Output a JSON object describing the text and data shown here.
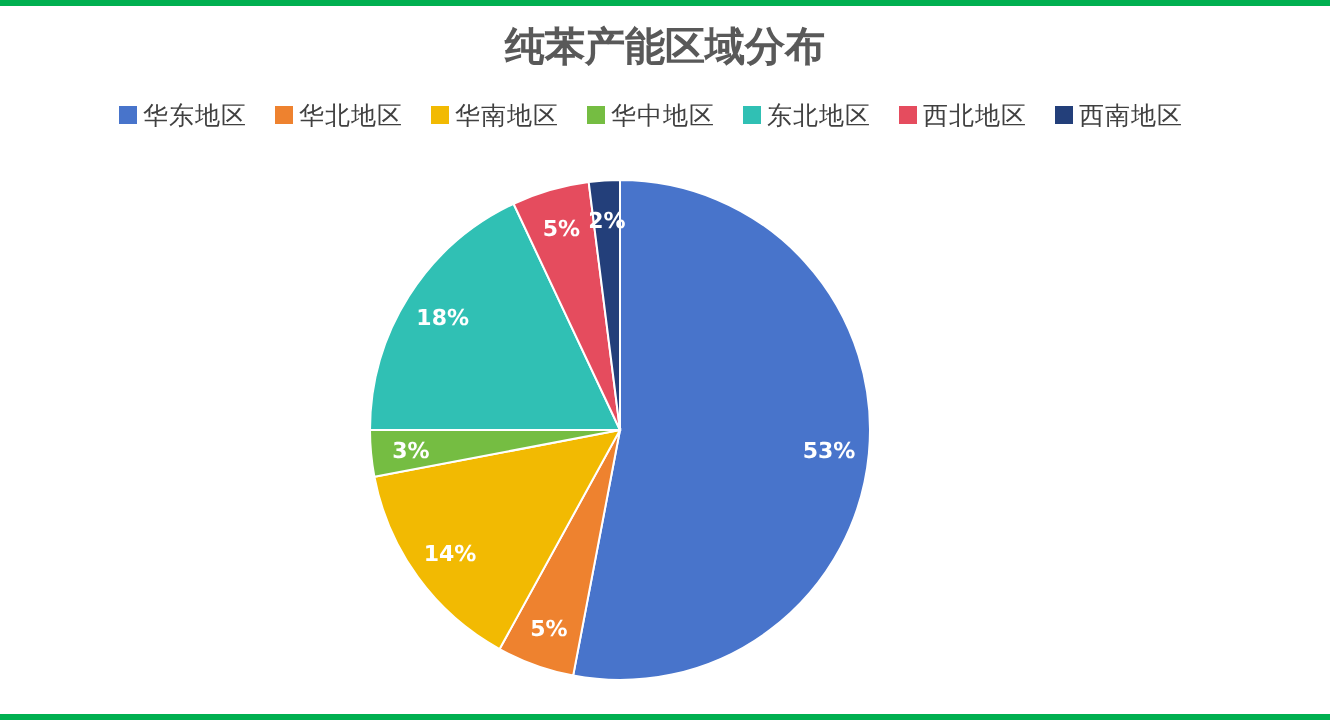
{
  "chart_data": {
    "type": "pie",
    "title": "纯苯产能区域分布",
    "categories": [
      "华东地区",
      "华北地区",
      "华南地区",
      "华中地区",
      "东北地区",
      "西北地区",
      "西南地区"
    ],
    "values": [
      53,
      5,
      14,
      3,
      18,
      5,
      2
    ],
    "colors": [
      "#4874cb",
      "#ee822f",
      "#f2ba02",
      "#75bd42",
      "#30c0b4",
      "#e54c5e",
      "#233f7a"
    ],
    "value_labels": [
      "53%",
      "5%",
      "14%",
      "3%",
      "18%",
      "5%",
      "2%"
    ],
    "legend": "top"
  }
}
